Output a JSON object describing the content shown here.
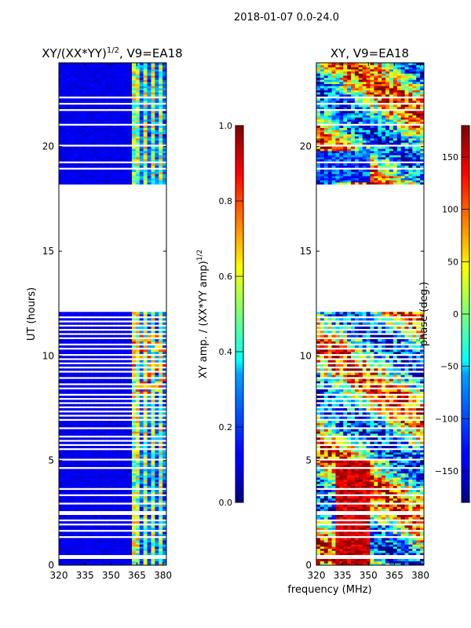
{
  "suptitle": "2018-01-07 0.0-24.0",
  "xlabel": "frequency (MHz)",
  "chart_data": [
    {
      "type": "heatmap",
      "title_main": "XY/(XX*YY)",
      "title_exp": "1/2",
      "title_tail": ", V9=EA18",
      "xlabel": "",
      "ylabel": "UT (hours)",
      "xlim": [
        320,
        382
      ],
      "ylim": [
        0,
        24
      ],
      "x_ticks": [
        320,
        335,
        350,
        365,
        380
      ],
      "y_ticks": [
        0,
        5,
        10,
        15,
        20
      ],
      "data_gap_hours": [
        12.0,
        18.1
      ],
      "colorbar": {
        "label_main": "XY amp. / (XX*YY amp)",
        "label_exp": "1/2",
        "range": [
          0.0,
          1.0
        ],
        "ticks": [
          0.0,
          0.2,
          0.4,
          0.6,
          0.8,
          1.0
        ],
        "tick_labels": [
          "0.0",
          "0.2",
          "0.4",
          "0.6",
          "0.8",
          "1.0"
        ]
      }
    },
    {
      "type": "heatmap",
      "title": "XY, V9=EA18",
      "xlabel": "frequency (MHz)",
      "ylabel": "",
      "xlim": [
        320,
        382
      ],
      "ylim": [
        0,
        24
      ],
      "x_ticks": [
        320,
        335,
        350,
        365,
        380
      ],
      "y_ticks": [
        0,
        5,
        10,
        15,
        20
      ],
      "data_gap_hours": [
        12.0,
        18.1
      ],
      "colorbar": {
        "label": "phase (deg.)",
        "range": [
          -180,
          180
        ],
        "ticks": [
          -150,
          -100,
          -50,
          0,
          50,
          100,
          150
        ],
        "tick_labels": [
          "−150",
          "−100",
          "−50",
          "0",
          "50",
          "100",
          "150"
        ]
      }
    }
  ]
}
